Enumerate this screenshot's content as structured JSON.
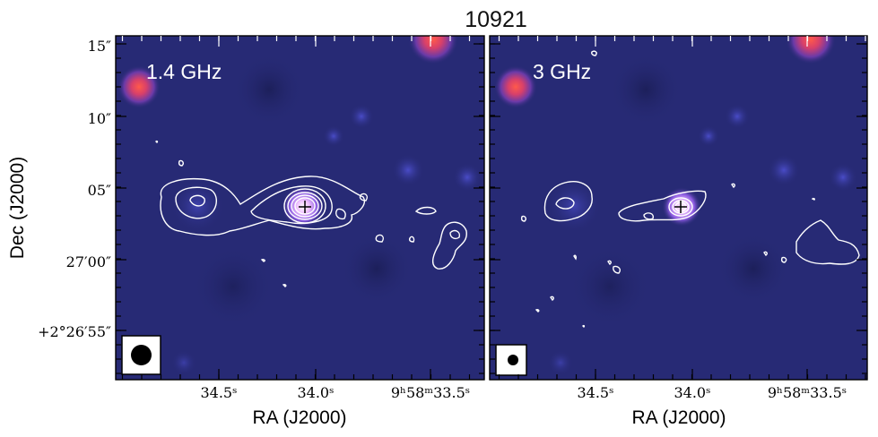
{
  "figure": {
    "title": "10921",
    "panels": [
      {
        "label": "1.4 GHz",
        "beam": "large"
      },
      {
        "label": "3 GHz",
        "beam": "small"
      }
    ],
    "xlabel": "RA (J2000)",
    "ylabel": "Dec (J2000)",
    "xticks": [
      "34.5ˢ",
      "34.0ˢ",
      "9ʰ58ᵐ33.5ˢ"
    ],
    "yticks": [
      "15″",
      "10″",
      "05″",
      "27′00″",
      "+2°26′55″"
    ],
    "colors": {
      "background": "#272a75",
      "hotspot": "#e0465a",
      "contour": "#ffffff"
    }
  }
}
